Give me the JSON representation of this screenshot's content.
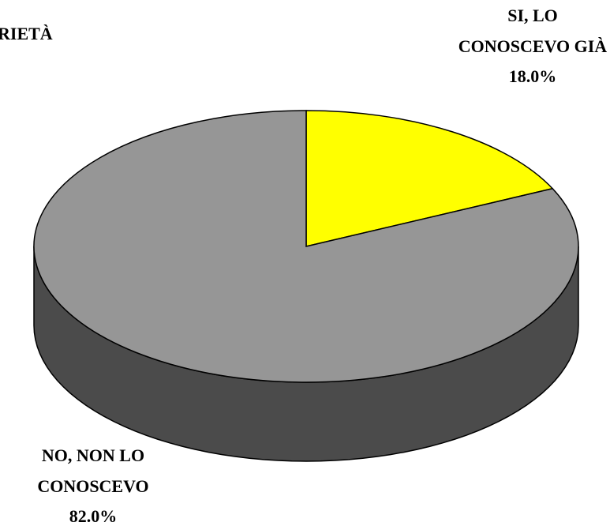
{
  "chart_data": {
    "type": "pie",
    "title": "RIETÀ",
    "categories": [
      "SI, LO CONOSCEVO GIÀ",
      "NO, NON LO CONOSCEVO"
    ],
    "values": [
      18.0,
      82.0
    ],
    "value_labels": [
      "18.0%",
      "82.0%"
    ],
    "colors": [
      "#ffff00",
      "#969696"
    ],
    "three_d": true
  }
}
